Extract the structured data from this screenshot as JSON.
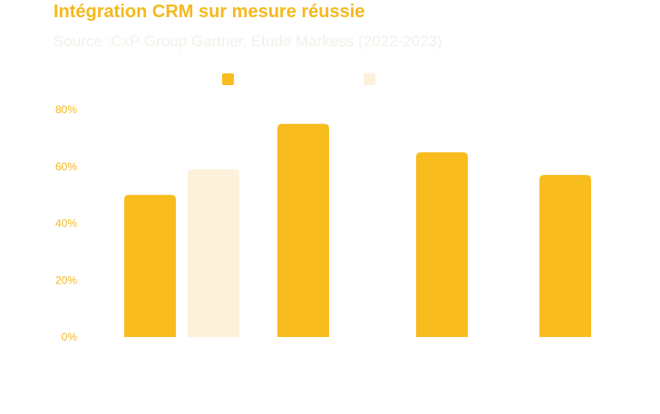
{
  "title": "Intégration CRM sur mesure réussie",
  "subtitle": "Source :CxP Group Gartner, Etude Markess (2022-2023)",
  "colors": {
    "primary": "#F9BC1E",
    "secondary": "#FDF1DC",
    "axis_text": "#F5B91E",
    "title": "#F5B91E",
    "subtitle": "#F3F0EA"
  },
  "chart_data": {
    "type": "bar",
    "categories": [
      "",
      "",
      "",
      ""
    ],
    "series": [
      {
        "name": "",
        "values": [
          50,
          75,
          65,
          57
        ]
      },
      {
        "name": "",
        "values": [
          59,
          null,
          null,
          null
        ]
      }
    ],
    "yticks": [
      "0%",
      "20%",
      "40%",
      "60%",
      "80%"
    ],
    "ylim": [
      0,
      80
    ],
    "grid": false,
    "legend": "top-center"
  }
}
